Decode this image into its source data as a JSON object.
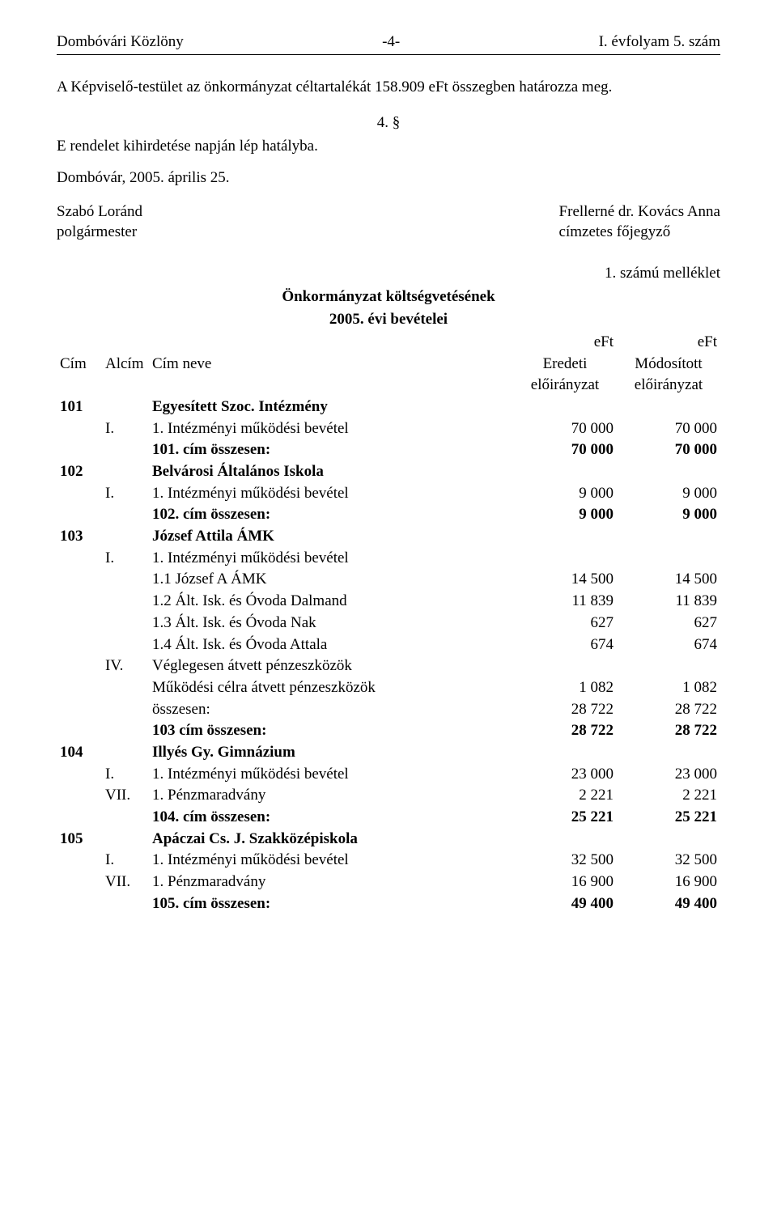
{
  "header": {
    "left": "Dombóvári Közlöny",
    "center": "-4-",
    "right": "I. évfolyam 5. szám"
  },
  "intro": "A Képviselő-testület az önkormányzat céltartalékát 158.909 eFt összegben határozza meg.",
  "section_num": "4. §",
  "decree_line": "E rendelet kihirdetése napján lép hatályba.",
  "date_line": "Dombóvár, 2005. április 25.",
  "signers": {
    "left_name": "Szabó Loránd",
    "left_title": "polgármester",
    "right_name": "Frellerné dr. Kovács Anna",
    "right_title": "címzetes főjegyző"
  },
  "annex": "1. számú melléklet",
  "budget_title_1": "Önkormányzat költségvetésének",
  "budget_title_2": "2005. évi bevételei",
  "eft": "eFt",
  "table_header": {
    "cim": "Cím",
    "alcim": "Alcím",
    "cimneve": "Cím neve",
    "eredeti": "Eredeti",
    "modositott": "Módosított",
    "eloiranyzat": "előirányzat"
  },
  "s101": {
    "code": "101",
    "title": "Egyesített Szoc. Intézmény",
    "r1_al": "I.",
    "r1_name": "1. Intézményi működési bevétel",
    "r1_v1": "70 000",
    "r1_v2": "70 000",
    "sum_name": "101. cím összesen:",
    "sum_v1": "70 000",
    "sum_v2": "70 000"
  },
  "s102": {
    "code": "102",
    "title": "Belvárosi Általános Iskola",
    "r1_al": "I.",
    "r1_name": "1. Intézményi működési bevétel",
    "r1_v1": "9 000",
    "r1_v2": "9 000",
    "sum_name": "102. cím összesen:",
    "sum_v1": "9 000",
    "sum_v2": "9 000"
  },
  "s103": {
    "code": "103",
    "title": "József Attila  ÁMK",
    "r1_al": "I.",
    "r1_name": "1. Intézményi működési bevétel",
    "r2_name": "1.1 József A ÁMK",
    "r2_v1": "14 500",
    "r2_v2": "14 500",
    "r3_name": "1.2 Ált. Isk. és Óvoda Dalmand",
    "r3_v1": "11 839",
    "r3_v2": "11 839",
    "r4_name": "1.3 Ált. Isk. és Óvoda Nak",
    "r4_v1": "627",
    "r4_v2": "627",
    "r5_name": "1.4 Ált. Isk. és Óvoda Attala",
    "r5_v1": "674",
    "r5_v2": "674",
    "r6_al": "IV.",
    "r6_name": "Véglegesen átvett pénzeszközök",
    "r7_name": "Működési célra átvett pénzeszközök",
    "r7_v1": "1 082",
    "r7_v2": "1 082",
    "r8_name": "összesen:",
    "r8_v1": "28 722",
    "r8_v2": "28 722",
    "sum_name": "103 cím összesen:",
    "sum_v1": "28 722",
    "sum_v2": "28 722"
  },
  "s104": {
    "code": "104",
    "title": "Illyés Gy. Gimnázium",
    "r1_al": "I.",
    "r1_name": "1. Intézményi működési bevétel",
    "r1_v1": "23 000",
    "r1_v2": "23 000",
    "r2_al": "VII.",
    "r2_name": "1. Pénzmaradvány",
    "r2_v1": "2 221",
    "r2_v2": "2 221",
    "sum_name": "104. cím összesen:",
    "sum_v1": "25 221",
    "sum_v2": "25 221"
  },
  "s105": {
    "code": "105",
    "title": "Apáczai Cs. J. Szakközépiskola",
    "r1_al": "I.",
    "r1_name": "1. Intézményi működési bevétel",
    "r1_v1": "32 500",
    "r1_v2": "32 500",
    "r2_al": "VII.",
    "r2_name": "1. Pénzmaradvány",
    "r2_v1": "16 900",
    "r2_v2": "16 900",
    "sum_name": "105. cím összesen:",
    "sum_v1": "49 400",
    "sum_v2": "49 400"
  }
}
